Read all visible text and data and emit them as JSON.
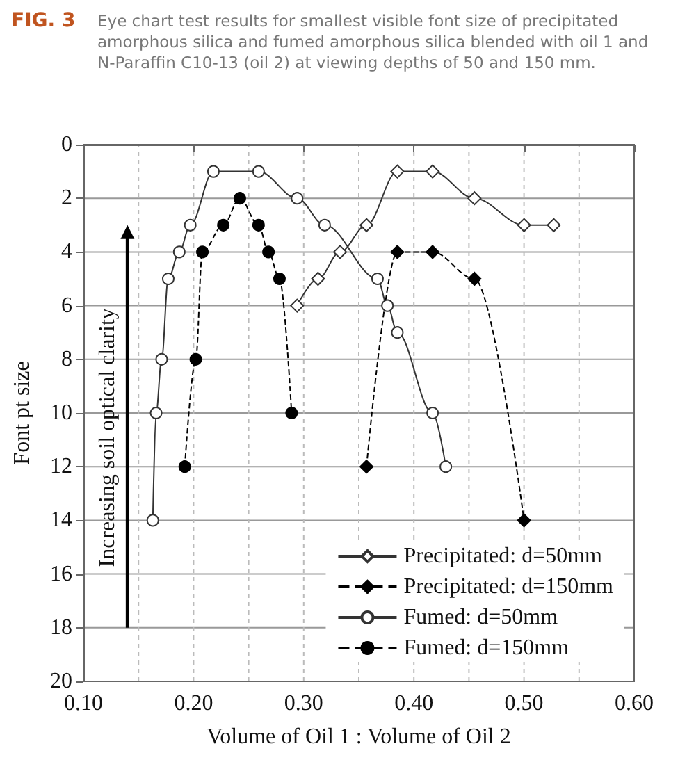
{
  "chart_data": {
    "type": "line",
    "title": "FIG. 3",
    "subtitle": "Eye chart test results for smallest visible font size of precipitated amorphous silica and fumed amorphous silica blended with oil 1 and N-Paraffin C10-13 (oil 2) at viewing depths of 50 and 150 mm.",
    "xlabel": "Volume of Oil 1 : Volume of Oil 2",
    "ylabel": "Font pt size",
    "annotations": [
      "Increasing soil optical clarity"
    ],
    "xlim": [
      0.1,
      0.6
    ],
    "xticks": [
      {
        "value": 0.1,
        "label": "0.10"
      },
      {
        "value": 0.15,
        "label": null
      },
      {
        "value": 0.2,
        "label": "0.20"
      },
      {
        "value": 0.25,
        "label": null
      },
      {
        "value": 0.3,
        "label": "0.30"
      },
      {
        "value": 0.35,
        "label": null
      },
      {
        "value": 0.4,
        "label": "0.40"
      },
      {
        "value": 0.45,
        "label": null
      },
      {
        "value": 0.5,
        "label": "0.50"
      },
      {
        "value": 0.55,
        "label": null
      },
      {
        "value": 0.6,
        "label": "0.60"
      }
    ],
    "ylim": [
      20,
      0
    ],
    "yticks": [
      0,
      2,
      4,
      6,
      8,
      10,
      12,
      14,
      16,
      18,
      20
    ],
    "grid": true,
    "legend": "bottom right",
    "series": [
      {
        "name": "Precipitated: d=50mm",
        "color": "#333333",
        "marker": "diamond",
        "line_style": "solid",
        "x": [
          0.294,
          0.313,
          0.333,
          0.357,
          0.385,
          0.417,
          0.455,
          0.5,
          0.527
        ],
        "values": [
          6,
          5,
          4,
          3,
          1,
          1,
          2,
          3,
          3
        ]
      },
      {
        "name": "Precipitated: d=150mm",
        "color": "#000000",
        "marker": "diamond",
        "line_style": "dashed",
        "x": [
          0.357,
          0.385,
          0.417,
          0.455,
          0.5
        ],
        "values": [
          12,
          4,
          4,
          5,
          14
        ]
      },
      {
        "name": "Fumed: d=50mm",
        "color": "#333333",
        "marker": "circle",
        "line_style": "solid",
        "x": [
          0.163,
          0.166,
          0.171,
          0.177,
          0.187,
          0.197,
          0.218,
          0.259,
          0.294,
          0.319,
          0.367,
          0.376,
          0.385,
          0.417,
          0.429
        ],
        "values": [
          14,
          10,
          8,
          5,
          4,
          3,
          1,
          1,
          2,
          3,
          5,
          6,
          7,
          10,
          12
        ]
      },
      {
        "name": "Fumed: d=150mm",
        "color": "#000000",
        "marker": "circle",
        "line_style": "dashed",
        "x": [
          0.192,
          0.202,
          0.208,
          0.227,
          0.242,
          0.259,
          0.268,
          0.278,
          0.289
        ],
        "values": [
          12,
          8,
          4,
          3,
          2,
          3,
          4,
          5,
          10
        ]
      }
    ]
  }
}
